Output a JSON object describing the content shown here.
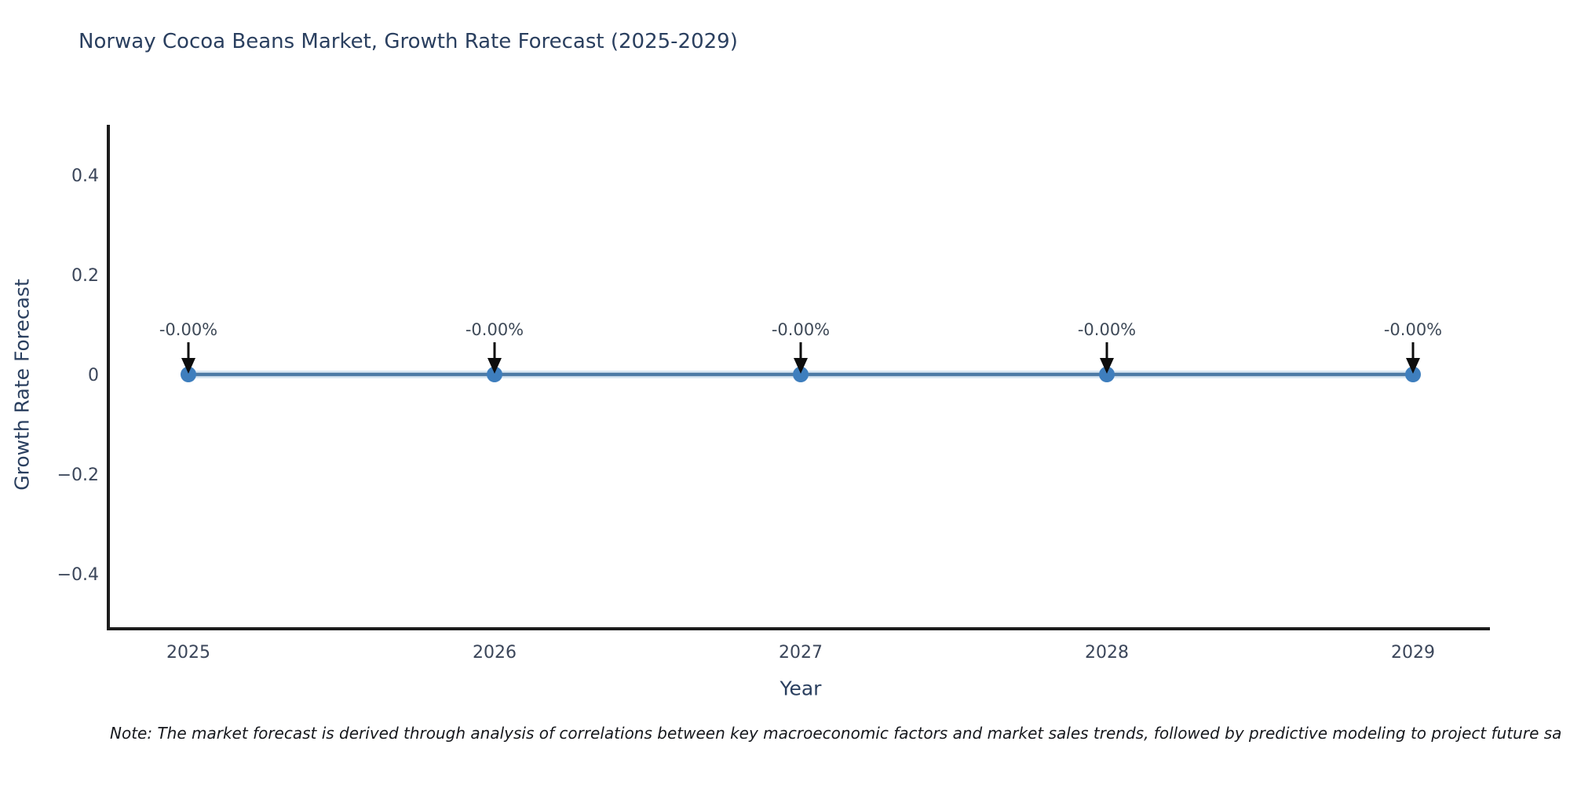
{
  "chart": {
    "note": "Note: The market forecast is derived through analysis of correlations between key macroeconomic factors and market sales trends, followed by predictive modeling to project future sa"
  },
  "chart_data": {
    "type": "line",
    "title": "Norway Cocoa Beans Market, Growth Rate Forecast (2025-2029)",
    "xlabel": "Year",
    "ylabel": "Growth Rate Forecast",
    "categories": [
      "2025",
      "2026",
      "2027",
      "2028",
      "2029"
    ],
    "series": [
      {
        "name": "Growth Rate Forecast",
        "values": [
          0,
          0,
          0,
          0,
          0
        ]
      }
    ],
    "point_labels": [
      "-0.00%",
      "-0.00%",
      "-0.00%",
      "-0.00%",
      "-0.00%"
    ],
    "ylim": [
      -0.5,
      0.5
    ],
    "ytick_values": [
      0.4,
      0.2,
      0,
      -0.2,
      -0.4
    ],
    "ytick_labels": [
      "0.4",
      "0.2",
      "0",
      "−0.2",
      "−0.4"
    ],
    "grid": false,
    "legend_position": "none",
    "colors": {
      "line": "#4d7ba6",
      "line_halo": "#dce9f3",
      "marker": "#3e7ebd",
      "arrow": "#0d0d0d",
      "axis": "#1c1c1c",
      "title_text": "#2a3f5f",
      "tick_text": "#3b465a",
      "annotation_text": "#3f4a58",
      "note_text": "#16181d"
    }
  }
}
